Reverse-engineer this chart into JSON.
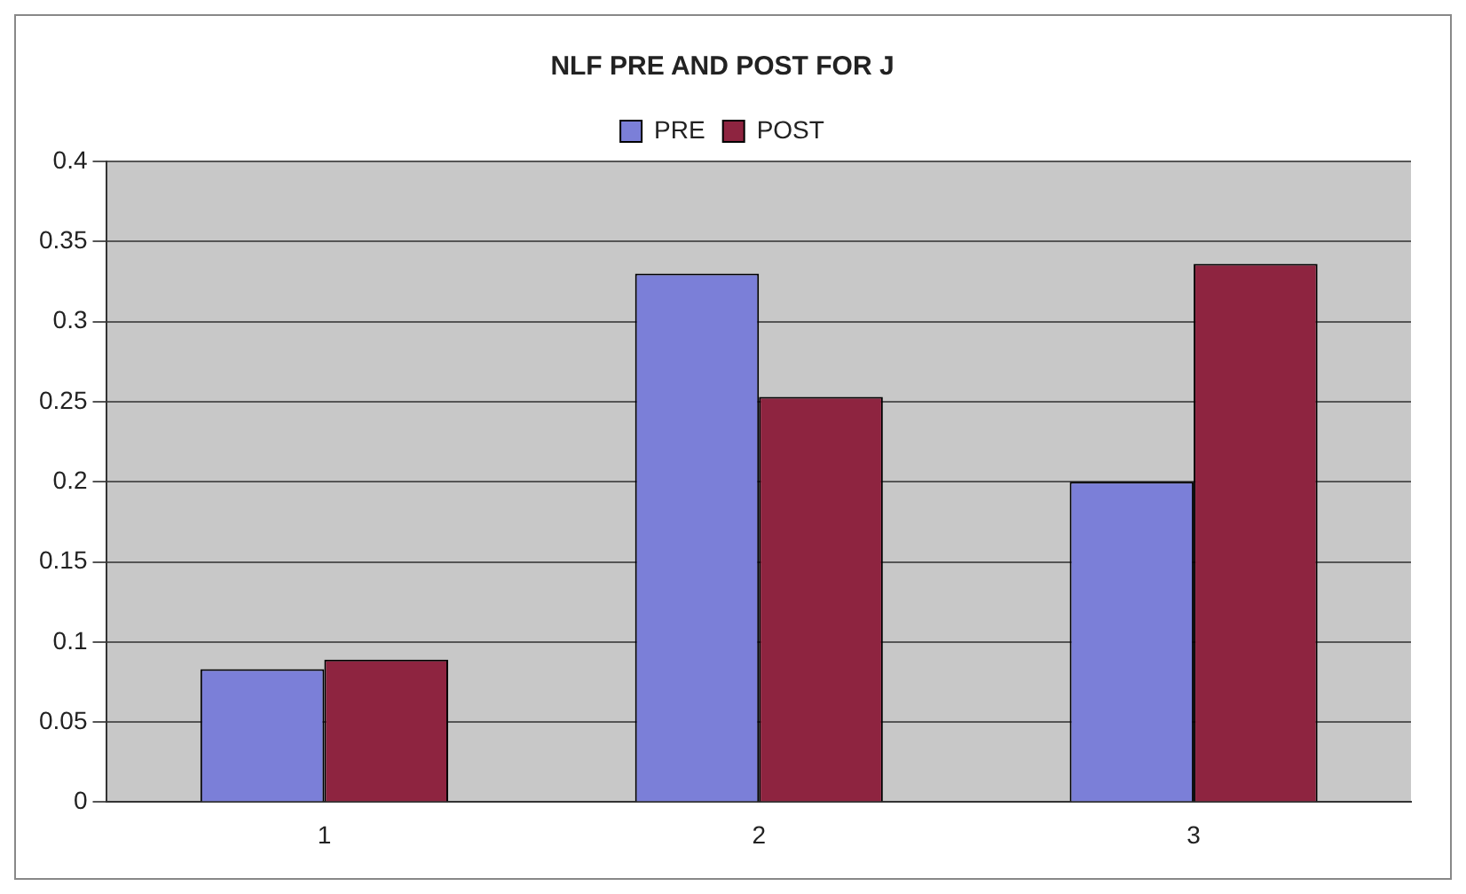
{
  "chart_data": {
    "type": "bar",
    "title": "NLF PRE AND POST FOR J",
    "categories": [
      "1",
      "2",
      "3"
    ],
    "series": [
      {
        "name": "PRE",
        "color": "#7b7fd8",
        "values": [
          0.083,
          0.33,
          0.2
        ]
      },
      {
        "name": "POST",
        "color": "#8e2440",
        "values": [
          0.089,
          0.253,
          0.336
        ]
      }
    ],
    "ylim": [
      0,
      0.4
    ],
    "yticks": [
      0,
      0.05,
      0.1,
      0.15,
      0.2,
      0.25,
      0.3,
      0.35,
      0.4
    ],
    "grid": "y",
    "legend": "top"
  }
}
